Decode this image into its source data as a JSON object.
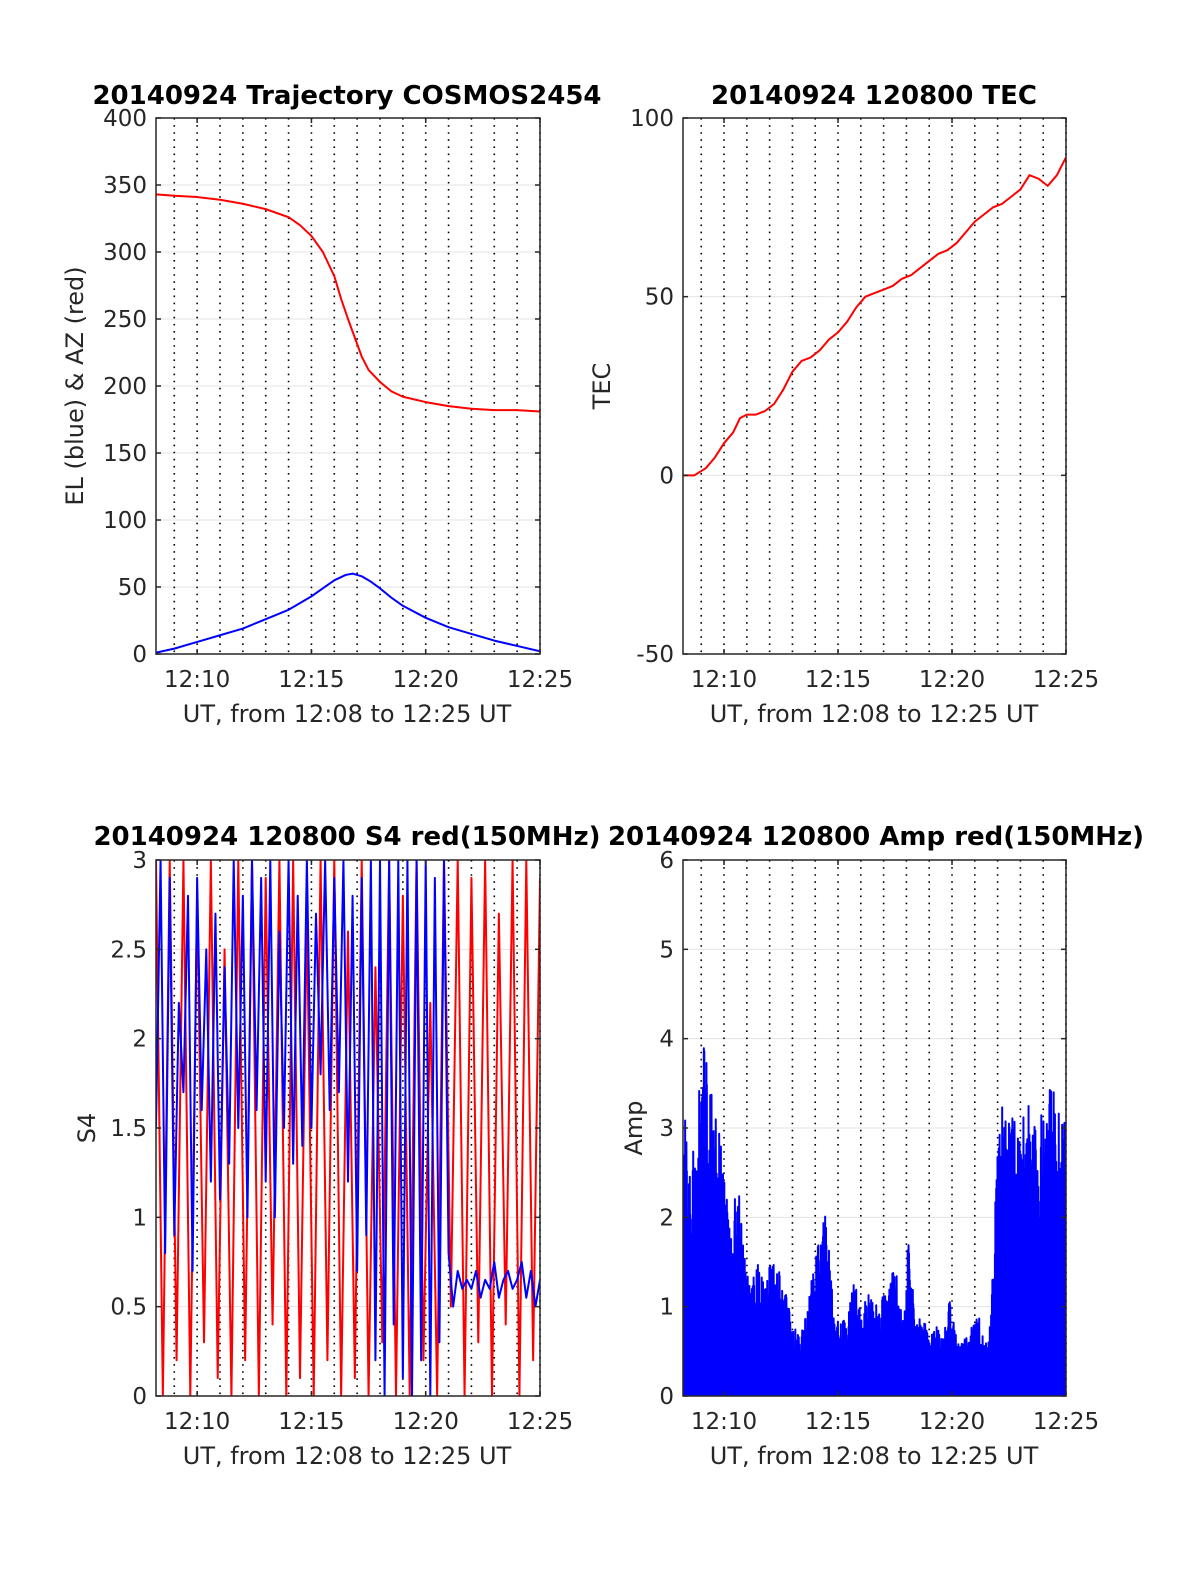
{
  "chart_data": [
    {
      "id": "trajectory",
      "type": "line",
      "title": "20140924 Trajectory COSMOS2454",
      "xlabel": "UT, from 12:08 to 12:25 UT",
      "ylabel": "EL (blue) & AZ (red)",
      "xlim": [
        8.2,
        25
      ],
      "ylim": [
        0,
        400
      ],
      "xticks": [
        10,
        15,
        20,
        25
      ],
      "xtick_labels": [
        "12:10",
        "12:15",
        "12:20",
        "12:25"
      ],
      "yticks": [
        0,
        50,
        100,
        150,
        200,
        250,
        300,
        350,
        400
      ],
      "ytick_labels": [
        "0",
        "50",
        "100",
        "150",
        "200",
        "250",
        "300",
        "350",
        "400"
      ],
      "grid": true,
      "series": [
        {
          "color": "#ff0000",
          "x": [
            8.2,
            9,
            10,
            11,
            12,
            13,
            14,
            14.5,
            15,
            15.5,
            16,
            16.3,
            16.6,
            16.9,
            17.2,
            17.5,
            18,
            18.5,
            19,
            20,
            21,
            22,
            23,
            24,
            25
          ],
          "y": [
            343,
            342,
            341,
            339,
            336,
            332,
            326,
            320,
            312,
            300,
            282,
            265,
            250,
            236,
            222,
            212,
            203,
            196,
            192,
            188,
            185,
            183,
            182,
            182,
            181
          ]
        },
        {
          "color": "#0000ff",
          "x": [
            8.2,
            9,
            10,
            11,
            12,
            13,
            14,
            15,
            15.5,
            16,
            16.5,
            16.8,
            17.2,
            17.6,
            18,
            18.5,
            19,
            20,
            21,
            22,
            23,
            24,
            25
          ],
          "y": [
            1,
            4,
            9,
            14,
            19,
            26,
            33,
            43,
            49,
            55,
            59,
            60,
            58,
            54,
            49,
            42,
            36,
            27,
            20,
            15,
            10,
            6,
            2
          ]
        }
      ]
    },
    {
      "id": "tec",
      "type": "line",
      "title": "20140924 120800 TEC",
      "xlabel": "UT, from 12:08 to 12:25 UT",
      "ylabel": "TEC",
      "xlim": [
        8.2,
        25
      ],
      "ylim": [
        -50,
        100
      ],
      "xticks": [
        10,
        15,
        20,
        25
      ],
      "xtick_labels": [
        "12:10",
        "12:15",
        "12:20",
        "12:25"
      ],
      "yticks": [
        -50,
        0,
        50,
        100
      ],
      "ytick_labels": [
        "-50",
        "0",
        "50",
        "100"
      ],
      "grid": true,
      "series": [
        {
          "color": "#ff0000",
          "x": [
            8.2,
            8.7,
            9.2,
            9.6,
            10,
            10.4,
            10.7,
            11,
            11.4,
            11.8,
            12.2,
            12.6,
            13,
            13.4,
            13.8,
            14.2,
            14.6,
            15,
            15.4,
            15.8,
            16.2,
            16.6,
            17,
            17.4,
            17.8,
            18.2,
            18.6,
            19,
            19.4,
            19.8,
            20.2,
            20.6,
            21,
            21.4,
            21.8,
            22.2,
            22.6,
            23,
            23.4,
            23.8,
            24.2,
            24.6,
            25
          ],
          "y": [
            0,
            0,
            2,
            5,
            9,
            12,
            16,
            17,
            17,
            18,
            20,
            24,
            29,
            32,
            33,
            35,
            38,
            40,
            43,
            47,
            50,
            51,
            52,
            53,
            55,
            56,
            58,
            60,
            62,
            63,
            65,
            68,
            71,
            73,
            75,
            76,
            78,
            80,
            84,
            83,
            81,
            84,
            89
          ]
        }
      ]
    },
    {
      "id": "s4",
      "type": "line",
      "title": "20140924 120800 S4 red(150MHz)",
      "xlabel": "UT, from 12:08 to 12:25 UT",
      "ylabel": "S4",
      "xlim": [
        8.2,
        25
      ],
      "ylim": [
        0,
        3
      ],
      "xticks": [
        10,
        15,
        20,
        25
      ],
      "xtick_labels": [
        "12:10",
        "12:15",
        "12:20",
        "12:25"
      ],
      "yticks": [
        0,
        0.5,
        1,
        1.5,
        2,
        2.5,
        3
      ],
      "ytick_labels": [
        "0",
        "0.5",
        "1",
        "1.5",
        "2",
        "2.5",
        "3"
      ],
      "grid": true,
      "series": [
        {
          "color": "#ff0000",
          "x": [
            8.2,
            8.5,
            8.8,
            9.1,
            9.4,
            9.7,
            10,
            10.3,
            10.6,
            10.9,
            11.2,
            11.5,
            11.8,
            12.1,
            12.4,
            12.7,
            13,
            13.3,
            13.6,
            13.9,
            14.2,
            14.5,
            14.8,
            15.1,
            15.4,
            15.7,
            16,
            16.3,
            16.6,
            16.9,
            17.2,
            17.5,
            17.8,
            18.1,
            18.4,
            18.7,
            19,
            19.3,
            19.6,
            19.9,
            20.2,
            20.5,
            20.8,
            21.1,
            21.4,
            21.7,
            22,
            22.3,
            22.6,
            22.9,
            23.2,
            23.5,
            23.8,
            24.1,
            24.4,
            24.7,
            25
          ],
          "y": [
            3,
            0,
            3,
            0.2,
            3,
            0,
            2.8,
            0.3,
            3,
            0.1,
            2.5,
            0,
            3,
            0.2,
            3,
            0,
            2.9,
            0.4,
            3,
            0,
            3,
            0.1,
            2.7,
            0,
            3,
            0.2,
            3,
            0,
            2.6,
            0.1,
            3,
            0,
            2.4,
            0.3,
            3,
            0,
            2.8,
            0,
            3,
            0.2,
            2.2,
            0,
            3,
            0.5,
            3,
            0,
            2.9,
            0.3,
            3,
            0,
            2.7,
            0.4,
            3,
            0,
            3,
            0.2,
            2.9
          ]
        },
        {
          "color": "#0000ff",
          "x": [
            8.2,
            8.4,
            8.6,
            8.8,
            9,
            9.2,
            9.4,
            9.6,
            9.8,
            10,
            10.2,
            10.4,
            10.6,
            10.8,
            11,
            11.2,
            11.4,
            11.6,
            11.8,
            12,
            12.2,
            12.4,
            12.6,
            12.8,
            13,
            13.2,
            13.4,
            13.6,
            13.8,
            14,
            14.2,
            14.4,
            14.6,
            14.8,
            15,
            15.2,
            15.4,
            15.6,
            15.8,
            16,
            16.2,
            16.4,
            16.6,
            16.8,
            17,
            17.2,
            17.4,
            17.6,
            17.8,
            18,
            18.2,
            18.4,
            18.6,
            18.8,
            19,
            19.2,
            19.4,
            19.6,
            19.8,
            20,
            20.2,
            20.4,
            20.6,
            20.8,
            21,
            21.2,
            21.4,
            21.6,
            21.8,
            22,
            22.2,
            22.4,
            22.6,
            22.8,
            23,
            23.2,
            23.4,
            23.6,
            23.8,
            24,
            24.2,
            24.4,
            24.6,
            24.8,
            25
          ],
          "y": [
            1.5,
            3,
            0.8,
            2.9,
            0.9,
            2.2,
            1.7,
            2.8,
            0.7,
            2.9,
            1.6,
            2.5,
            1.2,
            2.7,
            1.1,
            2.4,
            1.3,
            3,
            1.5,
            2.8,
            1.0,
            3,
            1.6,
            2.9,
            1.2,
            3,
            1.0,
            2.6,
            1.5,
            3,
            1.3,
            2.8,
            1.4,
            3,
            1.5,
            2.7,
            1.8,
            3,
            1.6,
            2.9,
            1.7,
            3,
            1.2,
            2.8,
            0.7,
            2.9,
            0.9,
            3,
            0.2,
            3,
            0.0,
            3,
            0.4,
            3,
            0.1,
            3,
            0.0,
            3,
            0.2,
            3,
            0.0,
            2.9,
            0.3,
            3,
            0.8,
            0.5,
            0.7,
            0.6,
            0.65,
            0.6,
            0.7,
            0.55,
            0.65,
            0.6,
            0.75,
            0.55,
            0.65,
            0.7,
            0.6,
            0.65,
            0.75,
            0.55,
            0.7,
            0.5,
            0.65
          ]
        }
      ]
    },
    {
      "id": "amp",
      "type": "line",
      "title": "20140924 120800 Amp red(150MHz)",
      "xlabel": "UT, from 12:08 to 12:25 UT",
      "ylabel": "Amp",
      "xlim": [
        8.2,
        25
      ],
      "ylim": [
        0,
        6
      ],
      "xticks": [
        10,
        15,
        20,
        25
      ],
      "xtick_labels": [
        "12:10",
        "12:15",
        "12:20",
        "12:25"
      ],
      "yticks": [
        0,
        1,
        2,
        3,
        4,
        5,
        6
      ],
      "ytick_labels": [
        "0",
        "1",
        "2",
        "3",
        "4",
        "5",
        "6"
      ],
      "grid": true,
      "series": [
        {
          "color": "#0000ff",
          "envelope_x": [
            8.2,
            8.5,
            8.8,
            9.1,
            9.4,
            9.7,
            10,
            10.3,
            10.6,
            10.9,
            11.2,
            11.5,
            11.8,
            12.1,
            12.4,
            12.7,
            13,
            13.3,
            13.6,
            13.9,
            14.2,
            14.5,
            14.8,
            15.1,
            15.4,
            15.7,
            16,
            16.3,
            16.6,
            16.9,
            17.2,
            17.5,
            17.8,
            18.1,
            18.4,
            18.7,
            19,
            19.3,
            19.6,
            19.9,
            20.2,
            20.5,
            20.8,
            21.1,
            21.4,
            21.7,
            22,
            22.3,
            22.6,
            22.9,
            23.2,
            23.5,
            23.8,
            24.1,
            24.4,
            24.7,
            25
          ],
          "envelope_y": [
            3.4,
            2.5,
            3.0,
            4.2,
            3.5,
            3.1,
            2.6,
            1.8,
            2.5,
            1.7,
            1.3,
            1.5,
            1.3,
            1.6,
            1.4,
            1.2,
            0.8,
            0.7,
            0.9,
            1.4,
            1.8,
            2.1,
            1.1,
            0.8,
            0.9,
            1.4,
            0.9,
            1.2,
            1.0,
            1.1,
            1.2,
            1.5,
            0.9,
            1.8,
            0.8,
            0.9,
            0.7,
            0.8,
            0.7,
            1.1,
            0.7,
            0.6,
            0.8,
            1.0,
            0.6,
            0.8,
            3.2,
            3.3,
            3.2,
            3.0,
            3.3,
            3.2,
            3.1,
            3.3,
            3.5,
            3.2,
            3.1
          ],
          "floor": 0
        }
      ]
    }
  ]
}
